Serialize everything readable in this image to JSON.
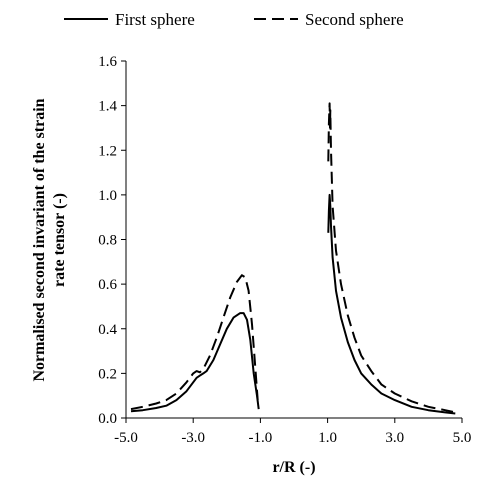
{
  "chart_data": {
    "type": "line",
    "title": "",
    "xlabel": "r/R (-)",
    "ylabel_lines": [
      "Normalised second invariant of the strain",
      "rate tensor (-)"
    ],
    "xlim": [
      -5.0,
      5.0
    ],
    "ylim": [
      0.0,
      1.6
    ],
    "xticks": [
      -5.0,
      -3.0,
      -1.0,
      1.0,
      3.0,
      5.0
    ],
    "xtick_labels": [
      "-5.0",
      "-3.0",
      "-1.0",
      "1.0",
      "3.0",
      "5.0"
    ],
    "yticks": [
      0.0,
      0.2,
      0.4,
      0.6,
      0.8,
      1.0,
      1.2,
      1.4,
      1.6
    ],
    "ytick_labels": [
      "0.0",
      "0.2",
      "0.4",
      "0.6",
      "0.8",
      "1.0",
      "1.2",
      "1.4",
      "1.6"
    ],
    "grid": false,
    "legend_position": "top",
    "series": [
      {
        "name": "First sphere",
        "style": "solid",
        "color": "#000000",
        "segments": [
          [
            [
              -4.85,
              0.03
            ],
            [
              -4.5,
              0.035
            ],
            [
              -4.1,
              0.045
            ],
            [
              -3.8,
              0.055
            ],
            [
              -3.5,
              0.08
            ],
            [
              -3.2,
              0.12
            ],
            [
              -3.0,
              0.16
            ],
            [
              -2.9,
              0.18
            ],
            [
              -2.8,
              0.19
            ],
            [
              -2.7,
              0.2
            ],
            [
              -2.6,
              0.21
            ],
            [
              -2.4,
              0.26
            ],
            [
              -2.2,
              0.33
            ],
            [
              -2.0,
              0.4
            ],
            [
              -1.8,
              0.45
            ],
            [
              -1.6,
              0.47
            ],
            [
              -1.5,
              0.47
            ],
            [
              -1.4,
              0.44
            ],
            [
              -1.3,
              0.35
            ],
            [
              -1.2,
              0.2
            ],
            [
              -1.1,
              0.1
            ],
            [
              -1.05,
              0.04
            ]
          ],
          [
            [
              1.02,
              0.83
            ],
            [
              1.04,
              0.93
            ],
            [
              1.06,
              1.0
            ],
            [
              1.08,
              0.95
            ],
            [
              1.1,
              0.86
            ],
            [
              1.15,
              0.72
            ],
            [
              1.25,
              0.57
            ],
            [
              1.4,
              0.45
            ],
            [
              1.6,
              0.34
            ],
            [
              1.8,
              0.26
            ],
            [
              2.0,
              0.2
            ],
            [
              2.3,
              0.15
            ],
            [
              2.6,
              0.11
            ],
            [
              3.0,
              0.08
            ],
            [
              3.5,
              0.05
            ],
            [
              4.0,
              0.035
            ],
            [
              4.5,
              0.025
            ],
            [
              4.8,
              0.02
            ]
          ]
        ]
      },
      {
        "name": "Second sphere",
        "style": "dashed",
        "color": "#000000",
        "segments": [
          [
            [
              -4.85,
              0.04
            ],
            [
              -4.5,
              0.05
            ],
            [
              -4.1,
              0.065
            ],
            [
              -3.8,
              0.08
            ],
            [
              -3.5,
              0.11
            ],
            [
              -3.2,
              0.16
            ],
            [
              -3.0,
              0.2
            ],
            [
              -2.9,
              0.21
            ],
            [
              -2.8,
              0.205
            ],
            [
              -2.7,
              0.22
            ],
            [
              -2.5,
              0.28
            ],
            [
              -2.3,
              0.36
            ],
            [
              -2.1,
              0.45
            ],
            [
              -1.9,
              0.54
            ],
            [
              -1.7,
              0.61
            ],
            [
              -1.55,
              0.64
            ],
            [
              -1.45,
              0.63
            ],
            [
              -1.35,
              0.57
            ],
            [
              -1.25,
              0.42
            ],
            [
              -1.15,
              0.22
            ],
            [
              -1.08,
              0.08
            ]
          ],
          [
            [
              1.02,
              1.15
            ],
            [
              1.04,
              1.32
            ],
            [
              1.06,
              1.41
            ],
            [
              1.07,
              1.3
            ],
            [
              1.08,
              1.38
            ],
            [
              1.1,
              1.2
            ],
            [
              1.15,
              0.95
            ],
            [
              1.25,
              0.75
            ],
            [
              1.4,
              0.6
            ],
            [
              1.6,
              0.46
            ],
            [
              1.8,
              0.36
            ],
            [
              2.0,
              0.28
            ],
            [
              2.3,
              0.21
            ],
            [
              2.6,
              0.15
            ],
            [
              3.0,
              0.11
            ],
            [
              3.5,
              0.075
            ],
            [
              4.0,
              0.05
            ],
            [
              4.5,
              0.035
            ],
            [
              4.8,
              0.025
            ]
          ]
        ]
      }
    ]
  }
}
